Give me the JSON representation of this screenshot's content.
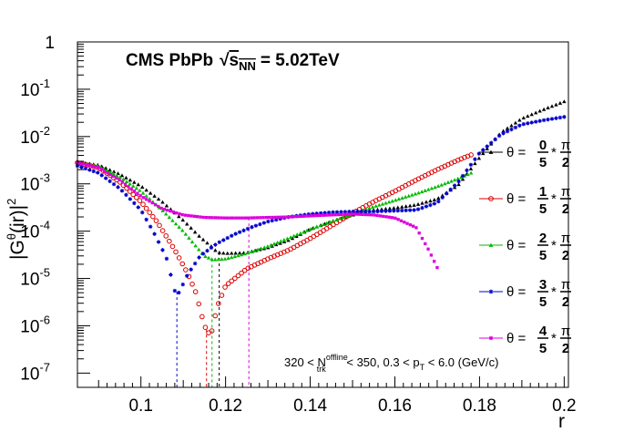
{
  "chart_data": {
    "type": "scatter",
    "title": {
      "main": "CMS PbPb",
      "energy_value": "= 5.02TeV",
      "sqrt_symbol": "√",
      "s_label": "s",
      "s_subscript": "NN"
    },
    "xlabel": "r",
    "ylabel": {
      "open": "|G",
      "superscript": "θ",
      "middle": "(ir)|",
      "power": "2"
    },
    "xlim": [
      0.085,
      0.201
    ],
    "ylim": [
      5e-08,
      1
    ],
    "yscale": "log",
    "x_ticks": [
      {
        "value": 0.1,
        "label": "0.1"
      },
      {
        "value": 0.12,
        "label": "0.12"
      },
      {
        "value": 0.14,
        "label": "0.14"
      },
      {
        "value": 0.16,
        "label": "0.16"
      },
      {
        "value": 0.18,
        "label": "0.18"
      },
      {
        "value": 0.2,
        "label": "0.2"
      }
    ],
    "y_ticks": [
      {
        "value": 1,
        "base": "1",
        "exp": ""
      },
      {
        "value": 0.1,
        "base": "10",
        "exp": "-1"
      },
      {
        "value": 0.01,
        "base": "10",
        "exp": "-2"
      },
      {
        "value": 0.001,
        "base": "10",
        "exp": "-3"
      },
      {
        "value": 0.0001,
        "base": "10",
        "exp": "-4"
      },
      {
        "value": 1e-05,
        "base": "10",
        "exp": "-5"
      },
      {
        "value": 1e-06,
        "base": "10",
        "exp": "-6"
      },
      {
        "value": 1e-07,
        "base": "10",
        "exp": "-7"
      }
    ],
    "annotation": {
      "prefix": "320 < N",
      "sup": "offline",
      "sub": "trk",
      "suffix_a": " < 350, 0.3 < p",
      "sub2": "T",
      "suffix_b": " < 6.0 (GeV/c)"
    },
    "legend_position": "right",
    "series": [
      {
        "theta": "θ =",
        "num": "0",
        "den": "5",
        "star": "*",
        "pnum": "π",
        "pden": "2",
        "color": "#000000",
        "marker": "filled-triangle",
        "zero_r": 0.1185,
        "anchors": [
          [
            0.085,
            0.0029
          ],
          [
            0.09,
            0.0025
          ],
          [
            0.095,
            0.0016
          ],
          [
            0.1,
            0.0009
          ],
          [
            0.105,
            0.00042
          ],
          [
            0.11,
            0.00017
          ],
          [
            0.114,
            7.5e-05
          ],
          [
            0.117,
            4.5e-05
          ],
          [
            0.118,
            3.6e-05
          ],
          [
            0.12,
            3.4e-05
          ],
          [
            0.125,
            3.5e-05
          ],
          [
            0.13,
            4.5e-05
          ],
          [
            0.135,
            6.5e-05
          ],
          [
            0.14,
            0.00011
          ],
          [
            0.145,
            0.00016
          ],
          [
            0.15,
            0.00022
          ],
          [
            0.155,
            0.00028
          ],
          [
            0.16,
            0.00031
          ],
          [
            0.165,
            0.00036
          ],
          [
            0.17,
            0.00048
          ],
          [
            0.175,
            0.00095
          ],
          [
            0.18,
            0.0036
          ],
          [
            0.185,
            0.012
          ],
          [
            0.19,
            0.024
          ],
          [
            0.195,
            0.037
          ],
          [
            0.2,
            0.055
          ]
        ]
      },
      {
        "theta": "θ =",
        "num": "1",
        "den": "5",
        "star": "*",
        "pnum": "π",
        "pden": "2",
        "color": "#dd0000",
        "marker": "open-circle",
        "zero_r": 0.1155,
        "anchors": [
          [
            0.085,
            0.0028
          ],
          [
            0.09,
            0.0022
          ],
          [
            0.095,
            0.0011
          ],
          [
            0.1,
            0.00042
          ],
          [
            0.104,
            0.00015
          ],
          [
            0.108,
            4e-05
          ],
          [
            0.111,
            1.3e-05
          ],
          [
            0.113,
            5e-06
          ],
          [
            0.115,
            1e-06
          ],
          [
            0.1165,
            6e-07
          ],
          [
            0.118,
            2.5e-06
          ],
          [
            0.12,
            7e-06
          ],
          [
            0.125,
            1.6e-05
          ],
          [
            0.13,
            2.6e-05
          ],
          [
            0.135,
            4e-05
          ],
          [
            0.14,
            7e-05
          ],
          [
            0.145,
            0.00013
          ],
          [
            0.15,
            0.00024
          ],
          [
            0.155,
            0.00042
          ],
          [
            0.16,
            0.0007
          ],
          [
            0.165,
            0.0012
          ],
          [
            0.17,
            0.002
          ],
          [
            0.175,
            0.0032
          ],
          [
            0.178,
            0.0041
          ]
        ]
      },
      {
        "theta": "θ =",
        "num": "2",
        "den": "5",
        "star": "*",
        "pnum": "π",
        "pden": "2",
        "color": "#00bb00",
        "marker": "filled-triangle",
        "zero_r": 0.1168,
        "anchors": [
          [
            0.085,
            0.0028
          ],
          [
            0.09,
            0.0024
          ],
          [
            0.095,
            0.0014
          ],
          [
            0.1,
            0.0007
          ],
          [
            0.105,
            0.00028
          ],
          [
            0.11,
            0.0001
          ],
          [
            0.113,
            4.8e-05
          ],
          [
            0.115,
            3e-05
          ],
          [
            0.117,
            2.5e-05
          ],
          [
            0.12,
            2.6e-05
          ],
          [
            0.125,
            3.4e-05
          ],
          [
            0.13,
            4.8e-05
          ],
          [
            0.135,
            7.2e-05
          ],
          [
            0.14,
            0.00011
          ],
          [
            0.145,
            0.00016
          ],
          [
            0.15,
            0.00023
          ],
          [
            0.155,
            0.00033
          ],
          [
            0.16,
            0.00045
          ],
          [
            0.165,
            0.00062
          ],
          [
            0.17,
            0.00088
          ],
          [
            0.175,
            0.0013
          ],
          [
            0.178,
            0.0017
          ]
        ]
      },
      {
        "theta": "θ =",
        "num": "3",
        "den": "5",
        "star": "*",
        "pnum": "π",
        "pden": "2",
        "color": "#0000cc",
        "marker": "star",
        "zero_r": 0.1085,
        "anchors": [
          [
            0.085,
            0.0024
          ],
          [
            0.09,
            0.0017
          ],
          [
            0.095,
            0.0008
          ],
          [
            0.1,
            0.00028
          ],
          [
            0.103,
            9.5e-05
          ],
          [
            0.106,
            2.8e-05
          ],
          [
            0.108,
            5.5e-06
          ],
          [
            0.109,
            5e-06
          ],
          [
            0.111,
            1.2e-05
          ],
          [
            0.114,
            3e-05
          ],
          [
            0.118,
            5.5e-05
          ],
          [
            0.122,
            8.5e-05
          ],
          [
            0.126,
            0.00012
          ],
          [
            0.13,
            0.00016
          ],
          [
            0.135,
            0.0002
          ],
          [
            0.14,
            0.00023
          ],
          [
            0.145,
            0.00025
          ],
          [
            0.15,
            0.00026
          ],
          [
            0.155,
            0.00026
          ],
          [
            0.16,
            0.00027
          ],
          [
            0.165,
            0.00028
          ],
          [
            0.17,
            0.0004
          ],
          [
            0.175,
            0.0011
          ],
          [
            0.18,
            0.0045
          ],
          [
            0.185,
            0.011
          ],
          [
            0.19,
            0.018
          ],
          [
            0.195,
            0.022
          ],
          [
            0.2,
            0.026
          ]
        ]
      },
      {
        "theta": "θ =",
        "num": "4",
        "den": "5",
        "star": "*",
        "pnum": "π",
        "pden": "2",
        "color": "#dd00dd",
        "marker": "filled-square",
        "zero_r": 0.1255,
        "anchors": [
          [
            0.085,
            0.0028
          ],
          [
            0.09,
            0.0022
          ],
          [
            0.095,
            0.0012
          ],
          [
            0.1,
            0.00055
          ],
          [
            0.105,
            0.0003
          ],
          [
            0.11,
            0.00022
          ],
          [
            0.115,
            0.000195
          ],
          [
            0.12,
            0.00019
          ],
          [
            0.125,
            0.00019
          ],
          [
            0.13,
            0.000195
          ],
          [
            0.135,
            0.0002
          ],
          [
            0.14,
            0.00021
          ],
          [
            0.145,
            0.00022
          ],
          [
            0.15,
            0.00023
          ],
          [
            0.155,
            0.00022
          ],
          [
            0.16,
            0.00019
          ],
          [
            0.165,
            0.00012
          ],
          [
            0.168,
            4e-05
          ],
          [
            0.17,
            1.7e-05
          ]
        ]
      }
    ]
  }
}
